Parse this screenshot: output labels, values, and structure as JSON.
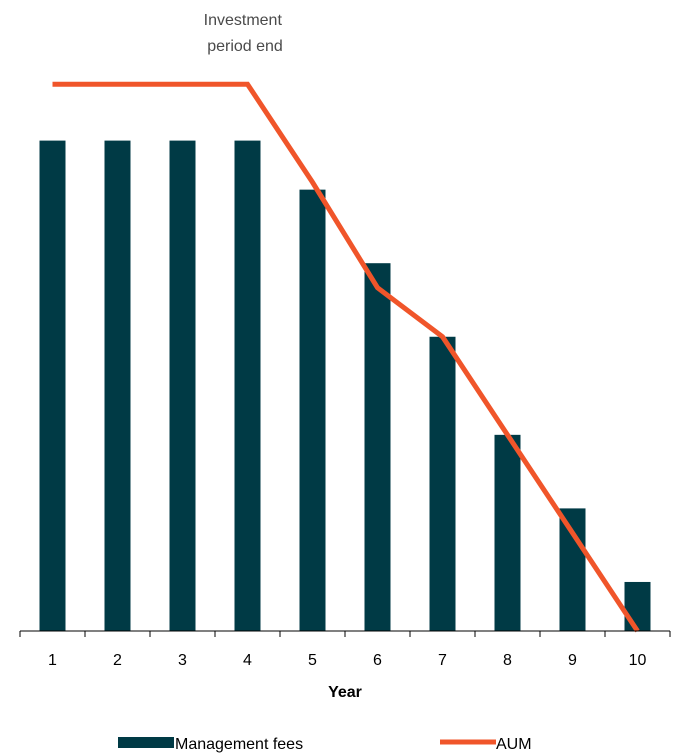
{
  "chart_data": {
    "type": "bar",
    "categories": [
      "1",
      "2",
      "3",
      "4",
      "5",
      "6",
      "7",
      "8",
      "9",
      "10"
    ],
    "series": [
      {
        "name": "Management fees",
        "type": "bar",
        "color": "#003a45",
        "values": [
          100,
          100,
          100,
          100,
          90,
          75,
          60,
          40,
          25,
          10
        ]
      },
      {
        "name": "AUM",
        "type": "line",
        "color": "#f0552a",
        "values": [
          111.5,
          111.5,
          111.5,
          111.5,
          91.5,
          70,
          60,
          40,
          20,
          0
        ]
      }
    ],
    "xlabel": "Year",
    "ylabel": "",
    "ylim": [
      0,
      125
    ],
    "grid": false,
    "legend_position": "bottom",
    "annotations": [
      {
        "text_lines": [
          "Investment",
          "period end"
        ],
        "x_category": "4"
      }
    ]
  }
}
